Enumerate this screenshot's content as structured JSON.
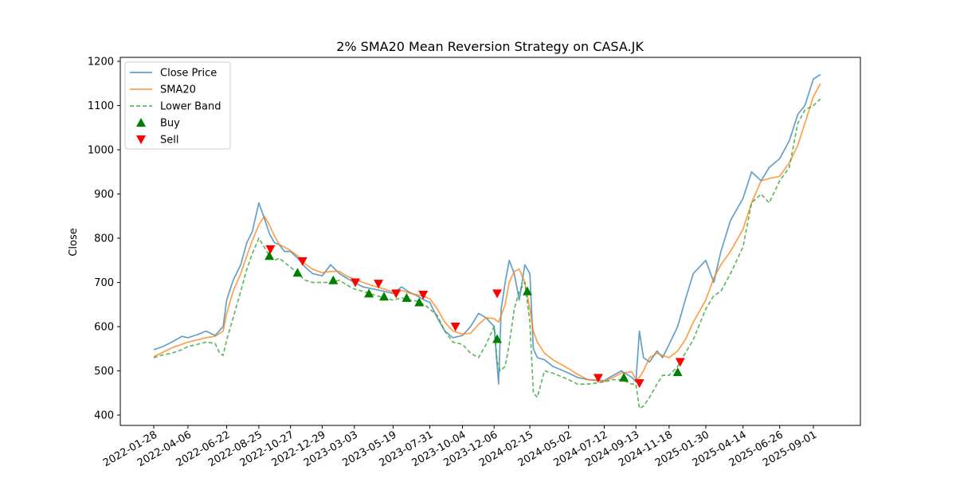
{
  "chart_data": {
    "type": "line",
    "title": "2% SMA20 Mean Reversion Strategy on CASA.JK",
    "xlabel": "",
    "ylabel": "Close",
    "xlim": [
      "2022-01-28",
      "2025-09-15"
    ],
    "ylim": [
      380,
      1210
    ],
    "y_ticks": [
      400,
      500,
      600,
      700,
      800,
      900,
      1000,
      1100,
      1200
    ],
    "x_ticks": [
      "2022-01-28",
      "2022-04-06",
      "2022-06-22",
      "2022-08-25",
      "2022-10-27",
      "2022-12-29",
      "2023-03-03",
      "2023-05-19",
      "2023-07-31",
      "2023-10-04",
      "2023-12-06",
      "2024-02-15",
      "2024-05-02",
      "2024-07-12",
      "2024-09-13",
      "2024-11-18",
      "2025-01-30",
      "2025-04-14",
      "2025-06-26",
      "2025-09-01"
    ],
    "grid": false,
    "legend_position": "top-left",
    "colors": {
      "close": "#1f77b4",
      "sma": "#ff7f0e",
      "lower": "#2ca02c",
      "buy": "#008000",
      "sell": "#ff0000"
    },
    "legend": [
      {
        "label": "Close Price",
        "kind": "line",
        "series": "close"
      },
      {
        "label": "SMA20",
        "kind": "line",
        "series": "sma"
      },
      {
        "label": "Lower Band",
        "kind": "dash",
        "series": "lower"
      },
      {
        "label": "Buy",
        "kind": "up",
        "series": "buy"
      },
      {
        "label": "Sell",
        "kind": "down",
        "series": "sell"
      }
    ],
    "series": [
      {
        "name": "Close Price",
        "key": "close",
        "x": [
          "2022-01-28",
          "2022-02-15",
          "2022-03-05",
          "2022-03-25",
          "2022-04-06",
          "2022-04-25",
          "2022-05-12",
          "2022-05-30",
          "2022-06-15",
          "2022-06-22",
          "2022-07-05",
          "2022-07-20",
          "2022-08-01",
          "2022-08-12",
          "2022-08-25",
          "2022-09-05",
          "2022-09-15",
          "2022-09-25",
          "2022-10-05",
          "2022-10-15",
          "2022-10-27",
          "2022-11-10",
          "2022-11-25",
          "2022-12-10",
          "2022-12-29",
          "2023-01-15",
          "2023-02-01",
          "2023-02-15",
          "2023-03-03",
          "2023-03-20",
          "2023-04-10",
          "2023-05-01",
          "2023-05-19",
          "2023-06-05",
          "2023-06-20",
          "2023-07-05",
          "2023-07-20",
          "2023-07-31",
          "2023-08-15",
          "2023-08-30",
          "2023-09-15",
          "2023-10-04",
          "2023-10-20",
          "2023-11-05",
          "2023-11-20",
          "2023-12-06",
          "2023-12-15",
          "2023-12-20",
          "2023-12-28",
          "2024-01-05",
          "2024-01-15",
          "2024-01-25",
          "2024-02-05",
          "2024-02-15",
          "2024-02-22",
          "2024-03-01",
          "2024-03-15",
          "2024-04-01",
          "2024-05-02",
          "2024-05-20",
          "2024-06-10",
          "2024-07-12",
          "2024-07-30",
          "2024-08-15",
          "2024-09-05",
          "2024-09-13",
          "2024-09-20",
          "2024-09-28",
          "2024-10-10",
          "2024-10-25",
          "2024-11-05",
          "2024-11-18",
          "2024-12-05",
          "2024-12-20",
          "2025-01-05",
          "2025-01-30",
          "2025-02-15",
          "2025-03-01",
          "2025-03-20",
          "2025-04-14",
          "2025-05-01",
          "2025-05-20",
          "2025-06-05",
          "2025-06-26",
          "2025-07-15",
          "2025-08-01",
          "2025-08-15",
          "2025-09-01",
          "2025-09-15"
        ],
        "y": [
          548,
          555,
          565,
          578,
          575,
          582,
          590,
          580,
          600,
          660,
          705,
          740,
          790,
          815,
          880,
          845,
          810,
          790,
          785,
          770,
          770,
          755,
          735,
          720,
          715,
          740,
          720,
          710,
          700,
          690,
          685,
          680,
          675,
          690,
          678,
          670,
          660,
          655,
          620,
          590,
          575,
          580,
          600,
          630,
          620,
          600,
          470,
          640,
          700,
          750,
          720,
          660,
          740,
          720,
          550,
          530,
          525,
          510,
          495,
          485,
          480,
          478,
          490,
          500,
          485,
          475,
          590,
          530,
          520,
          545,
          530,
          560,
          600,
          660,
          720,
          750,
          700,
          770,
          840,
          890,
          950,
          930,
          960,
          980,
          1020,
          1080,
          1100,
          1160,
          1170
        ]
      },
      {
        "name": "SMA20",
        "key": "sma",
        "x": [
          "2022-01-28",
          "2022-02-15",
          "2022-03-05",
          "2022-03-25",
          "2022-04-06",
          "2022-04-25",
          "2022-05-12",
          "2022-05-30",
          "2022-06-15",
          "2022-06-22",
          "2022-07-05",
          "2022-07-20",
          "2022-08-01",
          "2022-08-12",
          "2022-08-25",
          "2022-09-05",
          "2022-09-15",
          "2022-09-25",
          "2022-10-05",
          "2022-10-15",
          "2022-10-27",
          "2022-11-10",
          "2022-11-25",
          "2022-12-10",
          "2022-12-29",
          "2023-01-15",
          "2023-02-01",
          "2023-02-15",
          "2023-03-03",
          "2023-03-20",
          "2023-04-10",
          "2023-05-01",
          "2023-05-19",
          "2023-06-05",
          "2023-06-20",
          "2023-07-05",
          "2023-07-20",
          "2023-07-31",
          "2023-08-15",
          "2023-08-30",
          "2023-09-15",
          "2023-10-04",
          "2023-10-20",
          "2023-11-05",
          "2023-11-20",
          "2023-12-06",
          "2023-12-15",
          "2023-12-28",
          "2024-01-05",
          "2024-01-15",
          "2024-01-25",
          "2024-02-05",
          "2024-02-15",
          "2024-02-22",
          "2024-03-01",
          "2024-03-15",
          "2024-04-01",
          "2024-05-02",
          "2024-05-20",
          "2024-06-10",
          "2024-07-12",
          "2024-07-30",
          "2024-08-15",
          "2024-09-05",
          "2024-09-13",
          "2024-09-20",
          "2024-09-28",
          "2024-10-10",
          "2024-10-25",
          "2024-11-05",
          "2024-11-18",
          "2024-12-05",
          "2024-12-20",
          "2025-01-05",
          "2025-01-30",
          "2025-02-15",
          "2025-03-01",
          "2025-03-20",
          "2025-04-14",
          "2025-05-01",
          "2025-05-20",
          "2025-06-05",
          "2025-06-26",
          "2025-07-15",
          "2025-08-01",
          "2025-08-15",
          "2025-09-01",
          "2025-09-15"
        ],
        "y": [
          532,
          542,
          552,
          560,
          565,
          570,
          575,
          578,
          590,
          630,
          680,
          720,
          760,
          795,
          830,
          850,
          830,
          805,
          785,
          780,
          772,
          760,
          742,
          730,
          722,
          725,
          725,
          715,
          707,
          700,
          692,
          685,
          678,
          682,
          676,
          672,
          668,
          663,
          640,
          610,
          590,
          583,
          585,
          605,
          620,
          618,
          610,
          650,
          700,
          725,
          730,
          700,
          640,
          590,
          565,
          540,
          525,
          505,
          492,
          480,
          476,
          485,
          495,
          498,
          480,
          485,
          500,
          530,
          540,
          535,
          530,
          545,
          570,
          610,
          660,
          710,
          740,
          770,
          820,
          880,
          930,
          935,
          940,
          970,
          1010,
          1060,
          1120,
          1150
        ]
      },
      {
        "name": "Lower Band",
        "key": "lower",
        "x": [
          "2022-01-28",
          "2022-02-15",
          "2022-03-05",
          "2022-03-25",
          "2022-04-06",
          "2022-04-25",
          "2022-05-12",
          "2022-05-30",
          "2022-06-08",
          "2022-06-15",
          "2022-06-22",
          "2022-07-05",
          "2022-07-20",
          "2022-08-01",
          "2022-08-12",
          "2022-08-25",
          "2022-09-05",
          "2022-09-15",
          "2022-09-25",
          "2022-10-05",
          "2022-10-15",
          "2022-10-27",
          "2022-11-10",
          "2022-11-25",
          "2022-12-10",
          "2022-12-29",
          "2023-01-15",
          "2023-02-01",
          "2023-02-15",
          "2023-03-03",
          "2023-03-20",
          "2023-04-10",
          "2023-05-01",
          "2023-05-19",
          "2023-06-05",
          "2023-06-20",
          "2023-07-05",
          "2023-07-20",
          "2023-07-31",
          "2023-08-15",
          "2023-08-30",
          "2023-09-15",
          "2023-10-04",
          "2023-10-20",
          "2023-11-05",
          "2023-11-20",
          "2023-12-06",
          "2023-12-12",
          "2023-12-18",
          "2023-12-28",
          "2024-01-05",
          "2024-01-15",
          "2024-01-25",
          "2024-02-05",
          "2024-02-15",
          "2024-02-22",
          "2024-03-01",
          "2024-03-15",
          "2024-04-01",
          "2024-05-02",
          "2024-05-20",
          "2024-06-10",
          "2024-07-12",
          "2024-07-30",
          "2024-08-15",
          "2024-09-05",
          "2024-09-13",
          "2024-09-20",
          "2024-09-28",
          "2024-10-10",
          "2024-10-25",
          "2024-11-05",
          "2024-11-18",
          "2024-12-05",
          "2024-12-20",
          "2025-01-05",
          "2025-01-30",
          "2025-02-15",
          "2025-03-01",
          "2025-03-20",
          "2025-04-14",
          "2025-05-01",
          "2025-05-20",
          "2025-06-05",
          "2025-06-26",
          "2025-07-15",
          "2025-08-01",
          "2025-08-15",
          "2025-09-01",
          "2025-09-15"
        ],
        "y": [
          530,
          536,
          540,
          548,
          555,
          560,
          565,
          562,
          540,
          535,
          570,
          620,
          680,
          730,
          765,
          800,
          780,
          760,
          750,
          755,
          745,
          735,
          720,
          705,
          700,
          700,
          700,
          705,
          695,
          685,
          680,
          672,
          665,
          660,
          665,
          660,
          658,
          650,
          640,
          625,
          590,
          565,
          560,
          540,
          530,
          560,
          600,
          520,
          500,
          510,
          560,
          640,
          680,
          700,
          610,
          450,
          440,
          500,
          495,
          480,
          470,
          470,
          475,
          480,
          480,
          470,
          470,
          415,
          420,
          440,
          470,
          490,
          490,
          510,
          540,
          570,
          640,
          670,
          680,
          720,
          780,
          880,
          900,
          880,
          930,
          960,
          1060,
          1090,
          1100,
          1115
        ]
      }
    ],
    "buy_signals": {
      "name": "Buy",
      "x": [
        "2022-09-15",
        "2022-11-10",
        "2023-01-20",
        "2023-04-01",
        "2023-05-01",
        "2023-06-15",
        "2023-07-10",
        "2023-12-12",
        "2024-02-10",
        "2024-08-20",
        "2024-12-05"
      ],
      "y": [
        760,
        722,
        705,
        675,
        668,
        665,
        655,
        572,
        680,
        485,
        497
      ]
    },
    "sell_signals": {
      "name": "Sell",
      "x": [
        "2022-09-17",
        "2022-11-20",
        "2023-03-05",
        "2023-04-20",
        "2023-05-25",
        "2023-07-18",
        "2023-09-20",
        "2023-12-12",
        "2024-06-30",
        "2024-09-20",
        "2024-12-10"
      ],
      "y": [
        775,
        748,
        700,
        697,
        675,
        672,
        600,
        675,
        484,
        472,
        520
      ]
    }
  }
}
